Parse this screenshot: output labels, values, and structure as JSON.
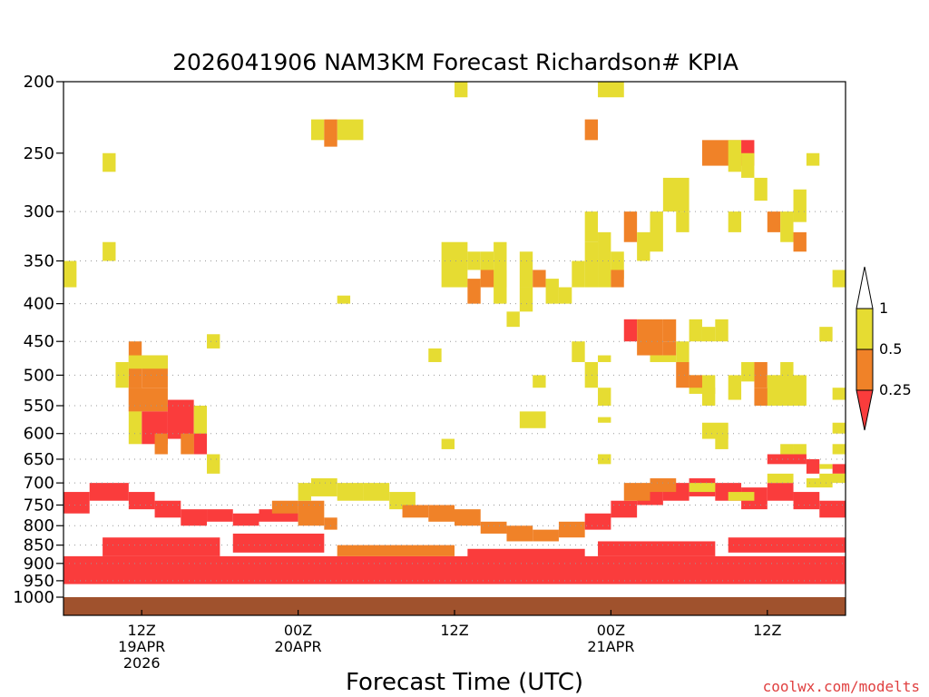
{
  "chart_data": {
    "type": "heatmap",
    "title": "2026041906 NAM3KM Forecast Richardson# KPIA",
    "xlabel": "Forecast Time (UTC)",
    "ylabel": "",
    "y_axis": {
      "scale": "log-pressure",
      "range_hPa": [
        1000,
        200
      ],
      "tick_labels": [
        "200",
        "250",
        "300",
        "350",
        "400",
        "450",
        "500",
        "550",
        "600",
        "650",
        "700",
        "750",
        "800",
        "850",
        "900",
        "950",
        "1000"
      ]
    },
    "x_axis": {
      "range_forecast_hours": [
        0,
        60
      ],
      "ticks": [
        {
          "hour": 6,
          "line1": "12Z",
          "line2": "19APR",
          "line3": "2026"
        },
        {
          "hour": 18,
          "line1": "00Z",
          "line2": "20APR",
          "line3": ""
        },
        {
          "hour": 30,
          "line1": "12Z",
          "line2": "",
          "line3": ""
        },
        {
          "hour": 42,
          "line1": "00Z",
          "line2": "21APR",
          "line3": ""
        },
        {
          "hour": 54,
          "line1": "12Z",
          "line2": "",
          "line3": ""
        }
      ]
    },
    "grid": "dotted horizontal at 300-950 hPa",
    "legend": {
      "placement": "right",
      "entries": [
        {
          "range": "< 0.25",
          "color": "#fa3c3c"
        },
        {
          "range": "0.25 - 0.5",
          "color": "#f08228"
        },
        {
          "range": "0.5 - 1",
          "color": "#e6dc32"
        },
        {
          "range": "> 1",
          "color": "#ffffff"
        }
      ],
      "tick_labels": [
        "1",
        "0.5",
        "0.25"
      ]
    },
    "colors": {
      "red": "#fa3c3c",
      "orange": "#f08228",
      "yellow": "#e6dc32",
      "ground": "#a0522d"
    },
    "ground_level_hPa": 1000,
    "cells": [
      [
        5,
        6,
        450,
        520,
        "o"
      ],
      [
        5,
        6,
        520,
        560,
        "o"
      ],
      [
        6,
        8,
        470,
        520,
        "o"
      ],
      [
        5,
        8,
        520,
        560,
        "o"
      ],
      [
        4,
        5,
        480,
        520,
        "y"
      ],
      [
        5,
        8,
        470,
        490,
        "y"
      ],
      [
        6,
        8,
        560,
        620,
        "r"
      ],
      [
        8,
        10,
        540,
        610,
        "r"
      ],
      [
        7,
        8,
        600,
        640,
        "o"
      ],
      [
        5,
        6,
        560,
        620,
        "y"
      ],
      [
        10,
        11,
        550,
        640,
        "y"
      ],
      [
        10,
        11,
        600,
        640,
        "r"
      ],
      [
        9,
        10,
        600,
        640,
        "o"
      ],
      [
        11,
        12,
        640,
        680,
        "y"
      ],
      [
        3,
        4,
        330,
        350,
        "y"
      ],
      [
        3,
        4,
        250,
        265,
        "y"
      ],
      [
        11,
        12,
        440,
        460,
        "y"
      ],
      [
        21,
        23,
        225,
        240,
        "y"
      ],
      [
        19,
        20,
        225,
        240,
        "y"
      ],
      [
        20,
        21,
        225,
        245,
        "o"
      ],
      [
        21,
        22,
        390,
        400,
        "y"
      ],
      [
        30,
        31,
        200,
        210,
        "y"
      ],
      [
        28,
        29,
        460,
        480,
        "y"
      ],
      [
        29,
        30,
        610,
        630,
        "y"
      ],
      [
        29,
        31,
        330,
        380,
        "y"
      ],
      [
        31,
        32,
        340,
        360,
        "y"
      ],
      [
        32,
        33,
        340,
        380,
        "y"
      ],
      [
        31,
        32,
        370,
        400,
        "o"
      ],
      [
        32,
        34,
        360,
        380,
        "o"
      ],
      [
        33,
        34,
        330,
        400,
        "y"
      ],
      [
        34,
        35,
        410,
        430,
        "y"
      ],
      [
        35,
        36,
        380,
        410,
        "y"
      ],
      [
        35,
        36,
        340,
        380,
        "y"
      ],
      [
        36,
        37,
        360,
        380,
        "o"
      ],
      [
        37,
        38,
        370,
        400,
        "y"
      ],
      [
        38,
        39,
        380,
        400,
        "y"
      ],
      [
        39,
        40,
        350,
        380,
        "y"
      ],
      [
        40,
        41,
        330,
        380,
        "y"
      ],
      [
        41,
        42,
        470,
        480,
        "y"
      ],
      [
        36,
        37,
        500,
        520,
        "y"
      ],
      [
        35,
        37,
        560,
        590,
        "y"
      ],
      [
        39,
        40,
        450,
        480,
        "y"
      ],
      [
        40,
        41,
        480,
        520,
        "y"
      ],
      [
        40,
        41,
        300,
        330,
        "y"
      ],
      [
        40,
        41,
        225,
        240,
        "o"
      ],
      [
        41,
        43,
        200,
        210,
        "y"
      ],
      [
        41,
        42,
        320,
        380,
        "y"
      ],
      [
        42,
        43,
        340,
        370,
        "y"
      ],
      [
        42,
        43,
        360,
        380,
        "o"
      ],
      [
        43,
        44,
        300,
        330,
        "o"
      ],
      [
        44,
        45,
        320,
        350,
        "y"
      ],
      [
        45,
        46,
        300,
        340,
        "y"
      ],
      [
        46,
        48,
        270,
        300,
        "y"
      ],
      [
        47,
        48,
        300,
        320,
        "y"
      ],
      [
        41,
        42,
        570,
        580,
        "y"
      ],
      [
        41,
        42,
        520,
        550,
        "y"
      ],
      [
        41,
        42,
        640,
        660,
        "y"
      ],
      [
        43,
        44,
        420,
        450,
        "r"
      ],
      [
        44,
        46,
        420,
        470,
        "o"
      ],
      [
        46,
        47,
        420,
        450,
        "o"
      ],
      [
        46,
        47,
        450,
        470,
        "o"
      ],
      [
        45,
        47,
        470,
        480,
        "y"
      ],
      [
        47,
        48,
        450,
        480,
        "y"
      ],
      [
        47,
        48,
        480,
        520,
        "o"
      ],
      [
        48,
        49,
        420,
        450,
        "y"
      ],
      [
        49,
        50,
        430,
        450,
        "y"
      ],
      [
        50,
        51,
        420,
        450,
        "y"
      ],
      [
        48,
        50,
        500,
        530,
        "y"
      ],
      [
        48,
        49,
        500,
        520,
        "o"
      ],
      [
        49,
        50,
        520,
        550,
        "y"
      ],
      [
        51,
        52,
        500,
        540,
        "y"
      ],
      [
        52,
        53,
        480,
        510,
        "y"
      ],
      [
        53,
        54,
        480,
        520,
        "o"
      ],
      [
        54,
        55,
        500,
        520,
        "y"
      ],
      [
        53,
        55,
        520,
        550,
        "o"
      ],
      [
        54,
        57,
        500,
        550,
        "y"
      ],
      [
        55,
        56,
        480,
        510,
        "y"
      ],
      [
        49,
        51,
        580,
        610,
        "y"
      ],
      [
        50,
        51,
        600,
        630,
        "y"
      ],
      [
        49,
        52,
        240,
        260,
        "o"
      ],
      [
        51,
        52,
        240,
        265,
        "y"
      ],
      [
        52,
        53,
        240,
        260,
        "r"
      ],
      [
        52,
        53,
        250,
        270,
        "y"
      ],
      [
        51,
        52,
        300,
        320,
        "y"
      ],
      [
        53,
        54,
        270,
        290,
        "y"
      ],
      [
        54,
        55,
        300,
        320,
        "o"
      ],
      [
        55,
        56,
        300,
        330,
        "y"
      ],
      [
        56,
        57,
        280,
        310,
        "y"
      ],
      [
        56,
        57,
        320,
        340,
        "o"
      ],
      [
        57,
        58,
        250,
        260,
        "y"
      ],
      [
        59,
        60,
        360,
        380,
        "y"
      ],
      [
        58,
        59,
        430,
        450,
        "y"
      ],
      [
        59,
        60,
        520,
        540,
        "y"
      ],
      [
        59,
        60,
        580,
        600,
        "y"
      ],
      [
        59,
        60,
        620,
        640,
        "y"
      ],
      [
        56,
        57,
        620,
        640,
        "y"
      ],
      [
        54,
        57,
        640,
        660,
        "r"
      ],
      [
        55,
        56,
        620,
        640,
        "y"
      ],
      [
        57,
        58,
        650,
        680,
        "r"
      ],
      [
        58,
        59,
        660,
        670,
        "y"
      ],
      [
        59,
        60,
        660,
        680,
        "r"
      ],
      [
        58,
        60,
        680,
        700,
        "y"
      ],
      [
        0,
        1,
        350,
        380,
        "y"
      ],
      [
        0,
        2,
        720,
        770,
        "r"
      ],
      [
        2,
        5,
        700,
        740,
        "r"
      ],
      [
        5,
        7,
        720,
        760,
        "r"
      ],
      [
        7,
        9,
        740,
        780,
        "r"
      ],
      [
        9,
        11,
        760,
        800,
        "r"
      ],
      [
        11,
        13,
        760,
        790,
        "r"
      ],
      [
        13,
        15,
        770,
        800,
        "r"
      ],
      [
        15,
        18,
        760,
        790,
        "r"
      ],
      [
        16,
        18,
        740,
        770,
        "o"
      ],
      [
        18,
        20,
        740,
        800,
        "o"
      ],
      [
        20,
        21,
        780,
        810,
        "o"
      ],
      [
        18,
        19,
        700,
        740,
        "y"
      ],
      [
        19,
        21,
        690,
        730,
        "y"
      ],
      [
        21,
        23,
        700,
        740,
        "y"
      ],
      [
        23,
        25,
        700,
        740,
        "y"
      ],
      [
        25,
        27,
        720,
        760,
        "y"
      ],
      [
        26,
        28,
        750,
        780,
        "o"
      ],
      [
        28,
        30,
        750,
        790,
        "o"
      ],
      [
        30,
        32,
        760,
        800,
        "o"
      ],
      [
        32,
        34,
        790,
        820,
        "o"
      ],
      [
        34,
        36,
        800,
        840,
        "o"
      ],
      [
        36,
        38,
        810,
        840,
        "o"
      ],
      [
        38,
        40,
        790,
        830,
        "o"
      ],
      [
        40,
        42,
        770,
        810,
        "r"
      ],
      [
        42,
        44,
        740,
        780,
        "r"
      ],
      [
        44,
        46,
        710,
        750,
        "r"
      ],
      [
        46,
        48,
        700,
        740,
        "r"
      ],
      [
        48,
        50,
        690,
        730,
        "r"
      ],
      [
        50,
        52,
        700,
        740,
        "r"
      ],
      [
        52,
        54,
        710,
        760,
        "r"
      ],
      [
        54,
        56,
        700,
        740,
        "r"
      ],
      [
        56,
        58,
        720,
        760,
        "r"
      ],
      [
        58,
        60,
        740,
        780,
        "r"
      ],
      [
        43,
        45,
        700,
        740,
        "o"
      ],
      [
        45,
        47,
        690,
        720,
        "o"
      ],
      [
        48,
        50,
        700,
        720,
        "y"
      ],
      [
        51,
        53,
        720,
        740,
        "y"
      ],
      [
        54,
        56,
        680,
        700,
        "y"
      ],
      [
        57,
        59,
        690,
        710,
        "y"
      ],
      [
        0,
        60,
        880,
        960,
        "r"
      ],
      [
        3,
        12,
        830,
        880,
        "r"
      ],
      [
        13,
        20,
        820,
        870,
        "r"
      ],
      [
        21,
        30,
        850,
        880,
        "o"
      ],
      [
        31,
        40,
        860,
        890,
        "r"
      ],
      [
        41,
        50,
        840,
        880,
        "r"
      ],
      [
        51,
        60,
        830,
        870,
        "r"
      ]
    ]
  }
}
